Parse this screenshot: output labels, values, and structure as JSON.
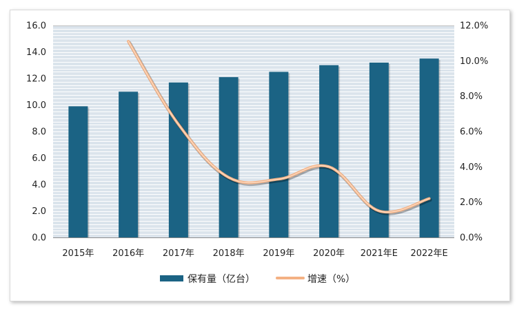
{
  "chart_data": {
    "type": "bar+line",
    "categories": [
      "2015年",
      "2016年",
      "2017年",
      "2018年",
      "2019年",
      "2020年",
      "2021年E",
      "2022年E"
    ],
    "series": [
      {
        "name": "保有量（亿台）",
        "type": "bar",
        "axis": "left",
        "color": "#1b6384",
        "values": [
          9.9,
          11.0,
          11.7,
          12.1,
          12.5,
          13.0,
          13.2,
          13.5
        ]
      },
      {
        "name": "增速（%）",
        "type": "line",
        "axis": "right",
        "color": "#f4b183",
        "values": [
          null,
          11.1,
          6.4,
          3.4,
          3.3,
          4.0,
          1.5,
          2.2
        ]
      }
    ],
    "left_axis": {
      "ylim": [
        0,
        16
      ],
      "ticks": [
        "0.0",
        "2.0",
        "4.0",
        "6.0",
        "8.0",
        "10.0",
        "12.0",
        "14.0",
        "16.0"
      ]
    },
    "right_axis": {
      "ylim": [
        0,
        12
      ],
      "ticks": [
        "0.0%",
        "2.0%",
        "4.0%",
        "6.0%",
        "8.0%",
        "10.0%",
        "12.0%"
      ]
    },
    "grid": true,
    "legend_position": "bottom"
  }
}
